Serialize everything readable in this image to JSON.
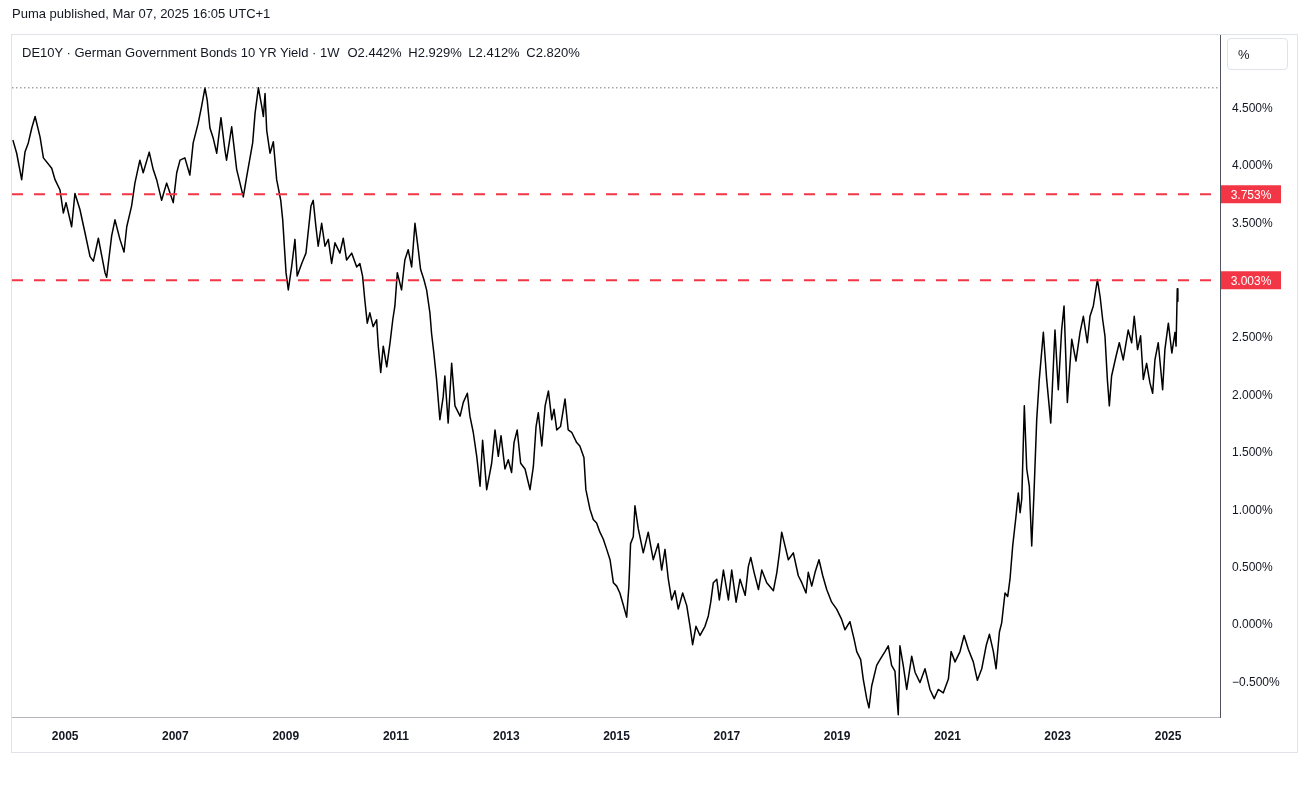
{
  "chart_data": {
    "type": "line",
    "title": "DE10Y · German Government Bonds 10 YR Yield · 1W",
    "subtitle": "O2.442% H2.929% L2.412% C2.820%",
    "ylabel": "%",
    "annotations": [
      "Puma published, Mar 07, 2025 16:05 UTC+1"
    ],
    "color": "#000000",
    "x": [
      "2004-01-22",
      "2004-02-15",
      "2004-03-19",
      "2004-04-10",
      "2004-05-02",
      "2004-05-25",
      "2004-06-16",
      "2004-07-19",
      "2004-08-10",
      "2004-10-04",
      "2004-10-26",
      "2004-11-28",
      "2004-12-20",
      "2005-01-07",
      "2005-02-13",
      "2005-03-07",
      "2005-04-09",
      "2005-05-12",
      "2005-06-15",
      "2005-07-07",
      "2005-08-09",
      "2005-09-22",
      "2005-10-03",
      "2005-11-05",
      "2005-11-27",
      "2005-12-30",
      "2006-01-26",
      "2006-02-13",
      "2006-03-17",
      "2006-04-08",
      "2006-05-11",
      "2006-06-02",
      "2006-07-12",
      "2006-08-07",
      "2006-08-30",
      "2006-10-02",
      "2006-11-04",
      "2006-12-18",
      "2007-01-10",
      "2007-02-01",
      "2007-03-05",
      "2007-04-07",
      "2007-04-29",
      "2007-06-01",
      "2007-06-24",
      "2007-07-16",
      "2007-07-31",
      "2007-08-18",
      "2007-09-09",
      "2007-10-02",
      "2007-10-30",
      "2007-11-25",
      "2007-12-06",
      "2008-01-09",
      "2008-02-11",
      "2008-03-26",
      "2008-04-18",
      "2008-05-27",
      "2008-06-12",
      "2008-07-04",
      "2008-07-26",
      "2008-08-06",
      "2008-08-17",
      "2008-08-28",
      "2008-09-19",
      "2008-10-11",
      "2008-11-02",
      "2008-11-29",
      "2008-12-12",
      "2009-01-03",
      "2009-01-18",
      "2009-02-09",
      "2009-03-03",
      "2009-03-18",
      "2009-04-17",
      "2009-05-15",
      "2009-06-17",
      "2009-07-02",
      "2009-07-20",
      "2009-08-04",
      "2009-08-27",
      "2009-09-18",
      "2009-10-10",
      "2009-11-01",
      "2009-11-23",
      "2009-12-26",
      "2010-01-17",
      "2010-02-08",
      "2010-03-14",
      "2010-04-16",
      "2010-05-07",
      "2010-05-25",
      "2010-06-09",
      "2010-06-25",
      "2010-07-12",
      "2010-08-03",
      "2010-08-26",
      "2010-09-06",
      "2010-09-22",
      "2010-10-09",
      "2010-11-01",
      "2010-11-23",
      "2010-12-11",
      "2010-12-25",
      "2011-01-10",
      "2011-02-07",
      "2011-03-01",
      "2011-03-23",
      "2011-04-15",
      "2011-05-07",
      "2011-05-29",
      "2011-06-13",
      "2011-07-05",
      "2011-07-23",
      "2011-08-14",
      "2011-08-25",
      "2011-09-09",
      "2011-09-27",
      "2011-10-19",
      "2011-11-10",
      "2011-11-21",
      "2011-12-13",
      "2012-01-05",
      "2012-01-27",
      "2012-03-01",
      "2012-03-22",
      "2012-04-18",
      "2012-05-05",
      "2012-05-27",
      "2012-06-19",
      "2012-07-11",
      "2012-07-28",
      "2012-08-24",
      "2012-09-26",
      "2012-10-18",
      "2012-11-09",
      "2012-11-27",
      "2012-12-23",
      "2013-01-14",
      "2013-02-05",
      "2013-02-21",
      "2013-03-14",
      "2013-04-06",
      "2013-05-05",
      "2013-05-27",
      "2013-06-07",
      "2013-06-29",
      "2013-07-17",
      "2013-08-01",
      "2013-08-24",
      "2013-09-15",
      "2013-10-07",
      "2013-10-29",
      "2013-11-13",
      "2013-12-01",
      "2013-12-26",
      "2014-01-25",
      "2014-02-15",
      "2014-03-10",
      "2014-04-12",
      "2014-05-03",
      "2014-05-30",
      "2014-06-12",
      "2014-07-09",
      "2014-07-31",
      "2014-08-22",
      "2014-09-13",
      "2014-10-05",
      "2014-10-28",
      "2014-11-19",
      "2014-12-11",
      "2015-01-02",
      "2015-01-23",
      "2015-02-14",
      "2015-03-09",
      "2015-03-24",
      "2015-04-04",
      "2015-04-22",
      "2015-05-03",
      "2015-05-25",
      "2015-06-27",
      "2015-07-30",
      "2015-09-01",
      "2015-10-04",
      "2015-10-27",
      "2015-11-18",
      "2015-12-10",
      "2016-01-01",
      "2016-01-23",
      "2016-02-14",
      "2016-03-14",
      "2016-04-10",
      "2016-05-02",
      "2016-05-19",
      "2016-06-10",
      "2016-07-07",
      "2016-08-09",
      "2016-08-31",
      "2016-09-16",
      "2016-10-03",
      "2016-10-26",
      "2016-11-12",
      "2016-12-09",
      "2017-01-11",
      "2017-02-02",
      "2017-03-03",
      "2017-03-29",
      "2017-05-02",
      "2017-05-23",
      "2017-06-08",
      "2017-06-30",
      "2017-07-29",
      "2017-08-20",
      "2017-09-22",
      "2017-11-05",
      "2017-11-28",
      "2017-12-15",
      "2017-12-30",
      "2018-01-21",
      "2018-02-12",
      "2018-03-17",
      "2018-04-19",
      "2018-05-12",
      "2018-06-09",
      "2018-06-24",
      "2018-07-17",
      "2018-08-08",
      "2018-09-03",
      "2018-09-28",
      "2018-10-24",
      "2018-11-26",
      "2018-12-29",
      "2019-01-31",
      "2019-02-22",
      "2019-03-27",
      "2019-04-23",
      "2019-05-11",
      "2019-06-06",
      "2019-06-23",
      "2019-07-16",
      "2019-07-31",
      "2019-08-18",
      "2019-09-20",
      "2019-10-12",
      "2019-11-14",
      "2019-12-06",
      "2019-12-28",
      "2020-01-19",
      "2020-02-10",
      "2020-02-21",
      "2020-03-14",
      "2020-04-06",
      "2020-05-09",
      "2020-05-31",
      "2020-07-03",
      "2020-08-05",
      "2020-09-07",
      "2020-10-05",
      "2020-11-01",
      "2020-12-04",
      "2021-01-07",
      "2021-01-25",
      "2021-02-20",
      "2021-03-25",
      "2021-04-21",
      "2021-05-19",
      "2021-06-21",
      "2021-07-18",
      "2021-08-16",
      "2021-09-14",
      "2021-10-06",
      "2021-11-01",
      "2021-11-19",
      "2021-12-11",
      "2021-12-26",
      "2022-01-17",
      "2022-02-04",
      "2022-02-19",
      "2022-03-09",
      "2022-03-31",
      "2022-04-15",
      "2022-04-27",
      "2022-05-08",
      "2022-05-25",
      "2022-06-10",
      "2022-06-27",
      "2022-07-13",
      "2022-07-28",
      "2022-08-15",
      "2022-09-01",
      "2022-09-28",
      "2022-10-20",
      "2022-11-16",
      "2022-12-14",
      "2023-01-05",
      "2023-01-27",
      "2023-02-12",
      "2023-03-06",
      "2023-04-04",
      "2023-05-02",
      "2023-05-29",
      "2023-06-20",
      "2023-07-16",
      "2023-08-03",
      "2023-08-25",
      "2023-09-21",
      "2023-10-09",
      "2023-10-26",
      "2023-11-10",
      "2023-11-26",
      "2023-12-09",
      "2023-12-24",
      "2024-01-22",
      "2024-02-13",
      "2024-03-10",
      "2024-04-12",
      "2024-05-05",
      "2024-05-22",
      "2024-06-13",
      "2024-07-03",
      "2024-07-21",
      "2024-08-12",
      "2024-09-03",
      "2024-09-21",
      "2024-10-06",
      "2024-10-28",
      "2024-11-26",
      "2024-12-11",
      "2025-01-03",
      "2025-01-26",
      "2025-02-16",
      "2025-02-23",
      "2025-03-03",
      "2025-03-07"
    ],
    "values": [
      4.22,
      4.11,
      3.88,
      4.12,
      4.2,
      4.33,
      4.43,
      4.25,
      4.07,
      3.98,
      3.88,
      3.79,
      3.59,
      3.68,
      3.47,
      3.76,
      3.62,
      3.42,
      3.21,
      3.17,
      3.37,
      3.07,
      3.03,
      3.39,
      3.53,
      3.36,
      3.25,
      3.47,
      3.65,
      3.85,
      4.05,
      3.94,
      4.12,
      3.97,
      3.88,
      3.7,
      3.85,
      3.68,
      3.94,
      4.05,
      4.07,
      3.92,
      4.2,
      4.37,
      4.52,
      4.68,
      4.57,
      4.33,
      4.24,
      4.11,
      4.42,
      4.14,
      4.05,
      4.34,
      3.97,
      3.73,
      3.91,
      4.2,
      4.46,
      4.68,
      4.52,
      4.43,
      4.63,
      4.31,
      4.11,
      4.21,
      3.88,
      3.7,
      3.53,
      3.07,
      2.92,
      3.12,
      3.36,
      3.04,
      3.15,
      3.24,
      3.65,
      3.7,
      3.47,
      3.3,
      3.5,
      3.3,
      3.36,
      3.15,
      3.33,
      3.24,
      3.37,
      3.18,
      3.24,
      3.12,
      3.15,
      3.04,
      2.83,
      2.63,
      2.72,
      2.6,
      2.66,
      2.43,
      2.2,
      2.43,
      2.25,
      2.46,
      2.66,
      2.78,
      3.07,
      2.92,
      3.18,
      3.27,
      3.12,
      3.5,
      3.27,
      3.1,
      3.01,
      2.92,
      2.72,
      2.54,
      2.37,
      2.14,
      1.79,
      1.99,
      2.17,
      1.76,
      2.28,
      1.91,
      1.82,
      1.94,
      2.02,
      1.82,
      1.68,
      1.47,
      1.21,
      1.61,
      1.18,
      1.41,
      1.7,
      1.47,
      1.65,
      1.36,
      1.44,
      1.33,
      1.59,
      1.7,
      1.41,
      1.36,
      1.24,
      1.18,
      1.38,
      1.73,
      1.85,
      1.56,
      1.91,
      2.04,
      1.79,
      1.88,
      1.7,
      1.73,
      1.97,
      1.7,
      1.68,
      1.59,
      1.56,
      1.46,
      1.18,
      1.01,
      0.92,
      0.89,
      0.81,
      0.75,
      0.66,
      0.57,
      0.37,
      0.34,
      0.28,
      0.18,
      0.07,
      0.34,
      0.71,
      0.77,
      1.04,
      0.84,
      0.63,
      0.81,
      0.57,
      0.71,
      0.48,
      0.66,
      0.4,
      0.22,
      0.3,
      0.14,
      0.28,
      0.17,
      -0.01,
      -0.17,
      -0.01,
      -0.09,
      -0.01,
      0.08,
      0.2,
      0.37,
      0.4,
      0.22,
      0.48,
      0.22,
      0.48,
      0.2,
      0.4,
      0.26,
      0.51,
      0.59,
      0.46,
      0.31,
      0.48,
      0.37,
      0.3,
      0.46,
      0.63,
      0.81,
      0.69,
      0.57,
      0.63,
      0.43,
      0.37,
      0.28,
      0.46,
      0.34,
      0.46,
      0.57,
      0.43,
      0.31,
      0.2,
      0.14,
      0.05,
      -0.04,
      0.03,
      -0.12,
      -0.23,
      -0.3,
      -0.47,
      -0.64,
      -0.72,
      -0.53,
      -0.35,
      -0.3,
      -0.23,
      -0.18,
      -0.35,
      -0.4,
      -0.78,
      -0.18,
      -0.35,
      -0.56,
      -0.27,
      -0.41,
      -0.5,
      -0.38,
      -0.56,
      -0.64,
      -0.56,
      -0.59,
      -0.47,
      -0.23,
      -0.32,
      -0.23,
      -0.09,
      -0.21,
      -0.32,
      -0.48,
      -0.38,
      -0.18,
      -0.08,
      -0.23,
      -0.38,
      -0.06,
      0.02,
      0.28,
      0.25,
      0.4,
      0.69,
      0.95,
      1.15,
      0.98,
      1.1,
      1.91,
      1.36,
      1.21,
      0.69,
      1.15,
      1.79,
      2.14,
      2.55,
      2.14,
      1.76,
      2.57,
      2.05,
      2.57,
      2.78,
      1.94,
      2.49,
      2.3,
      2.55,
      2.69,
      2.46,
      2.69,
      2.78,
      3.01,
      2.86,
      2.66,
      2.52,
      2.14,
      1.91,
      2.17,
      2.34,
      2.46,
      2.31,
      2.57,
      2.46,
      2.69,
      2.4,
      2.52,
      2.14,
      2.28,
      2.11,
      2.02,
      2.31,
      2.46,
      2.05,
      2.4,
      2.63,
      2.37,
      2.55,
      2.43,
      2.93,
      2.82
    ],
    "xlim": [
      "2004-01-15",
      "2025-12-11"
    ],
    "ylim": [
      -0.8,
      5.14
    ],
    "xticks": [
      "2005",
      "2007",
      "2009",
      "2011",
      "2013",
      "2015",
      "2017",
      "2019",
      "2021",
      "2023",
      "2025"
    ],
    "yticks": [
      {
        "value": -0.5,
        "label": "−0.500%"
      },
      {
        "value": 0,
        "label": "0.000%"
      },
      {
        "value": 0.5,
        "label": "0.500%"
      },
      {
        "value": 1,
        "label": "1.000%"
      },
      {
        "value": 1.5,
        "label": "1.500%"
      },
      {
        "value": 2,
        "label": "2.000%"
      },
      {
        "value": 2.5,
        "label": "2.500%"
      },
      {
        "value": 3.5,
        "label": "3.500%"
      },
      {
        "value": 4,
        "label": "4.000%"
      },
      {
        "value": 4.5,
        "label": "4.500%"
      }
    ],
    "ref_lines": [
      {
        "axis": "y",
        "value": 3.753,
        "label": "3.753%",
        "color": "#f23645",
        "line_style": "dashed"
      },
      {
        "axis": "y",
        "value": 3.003,
        "label": "3.003%",
        "color": "#f23645",
        "line_style": "dashed"
      },
      {
        "axis": "y",
        "value": 4.68,
        "color": "#787b86",
        "line_style": "dotted"
      }
    ]
  }
}
